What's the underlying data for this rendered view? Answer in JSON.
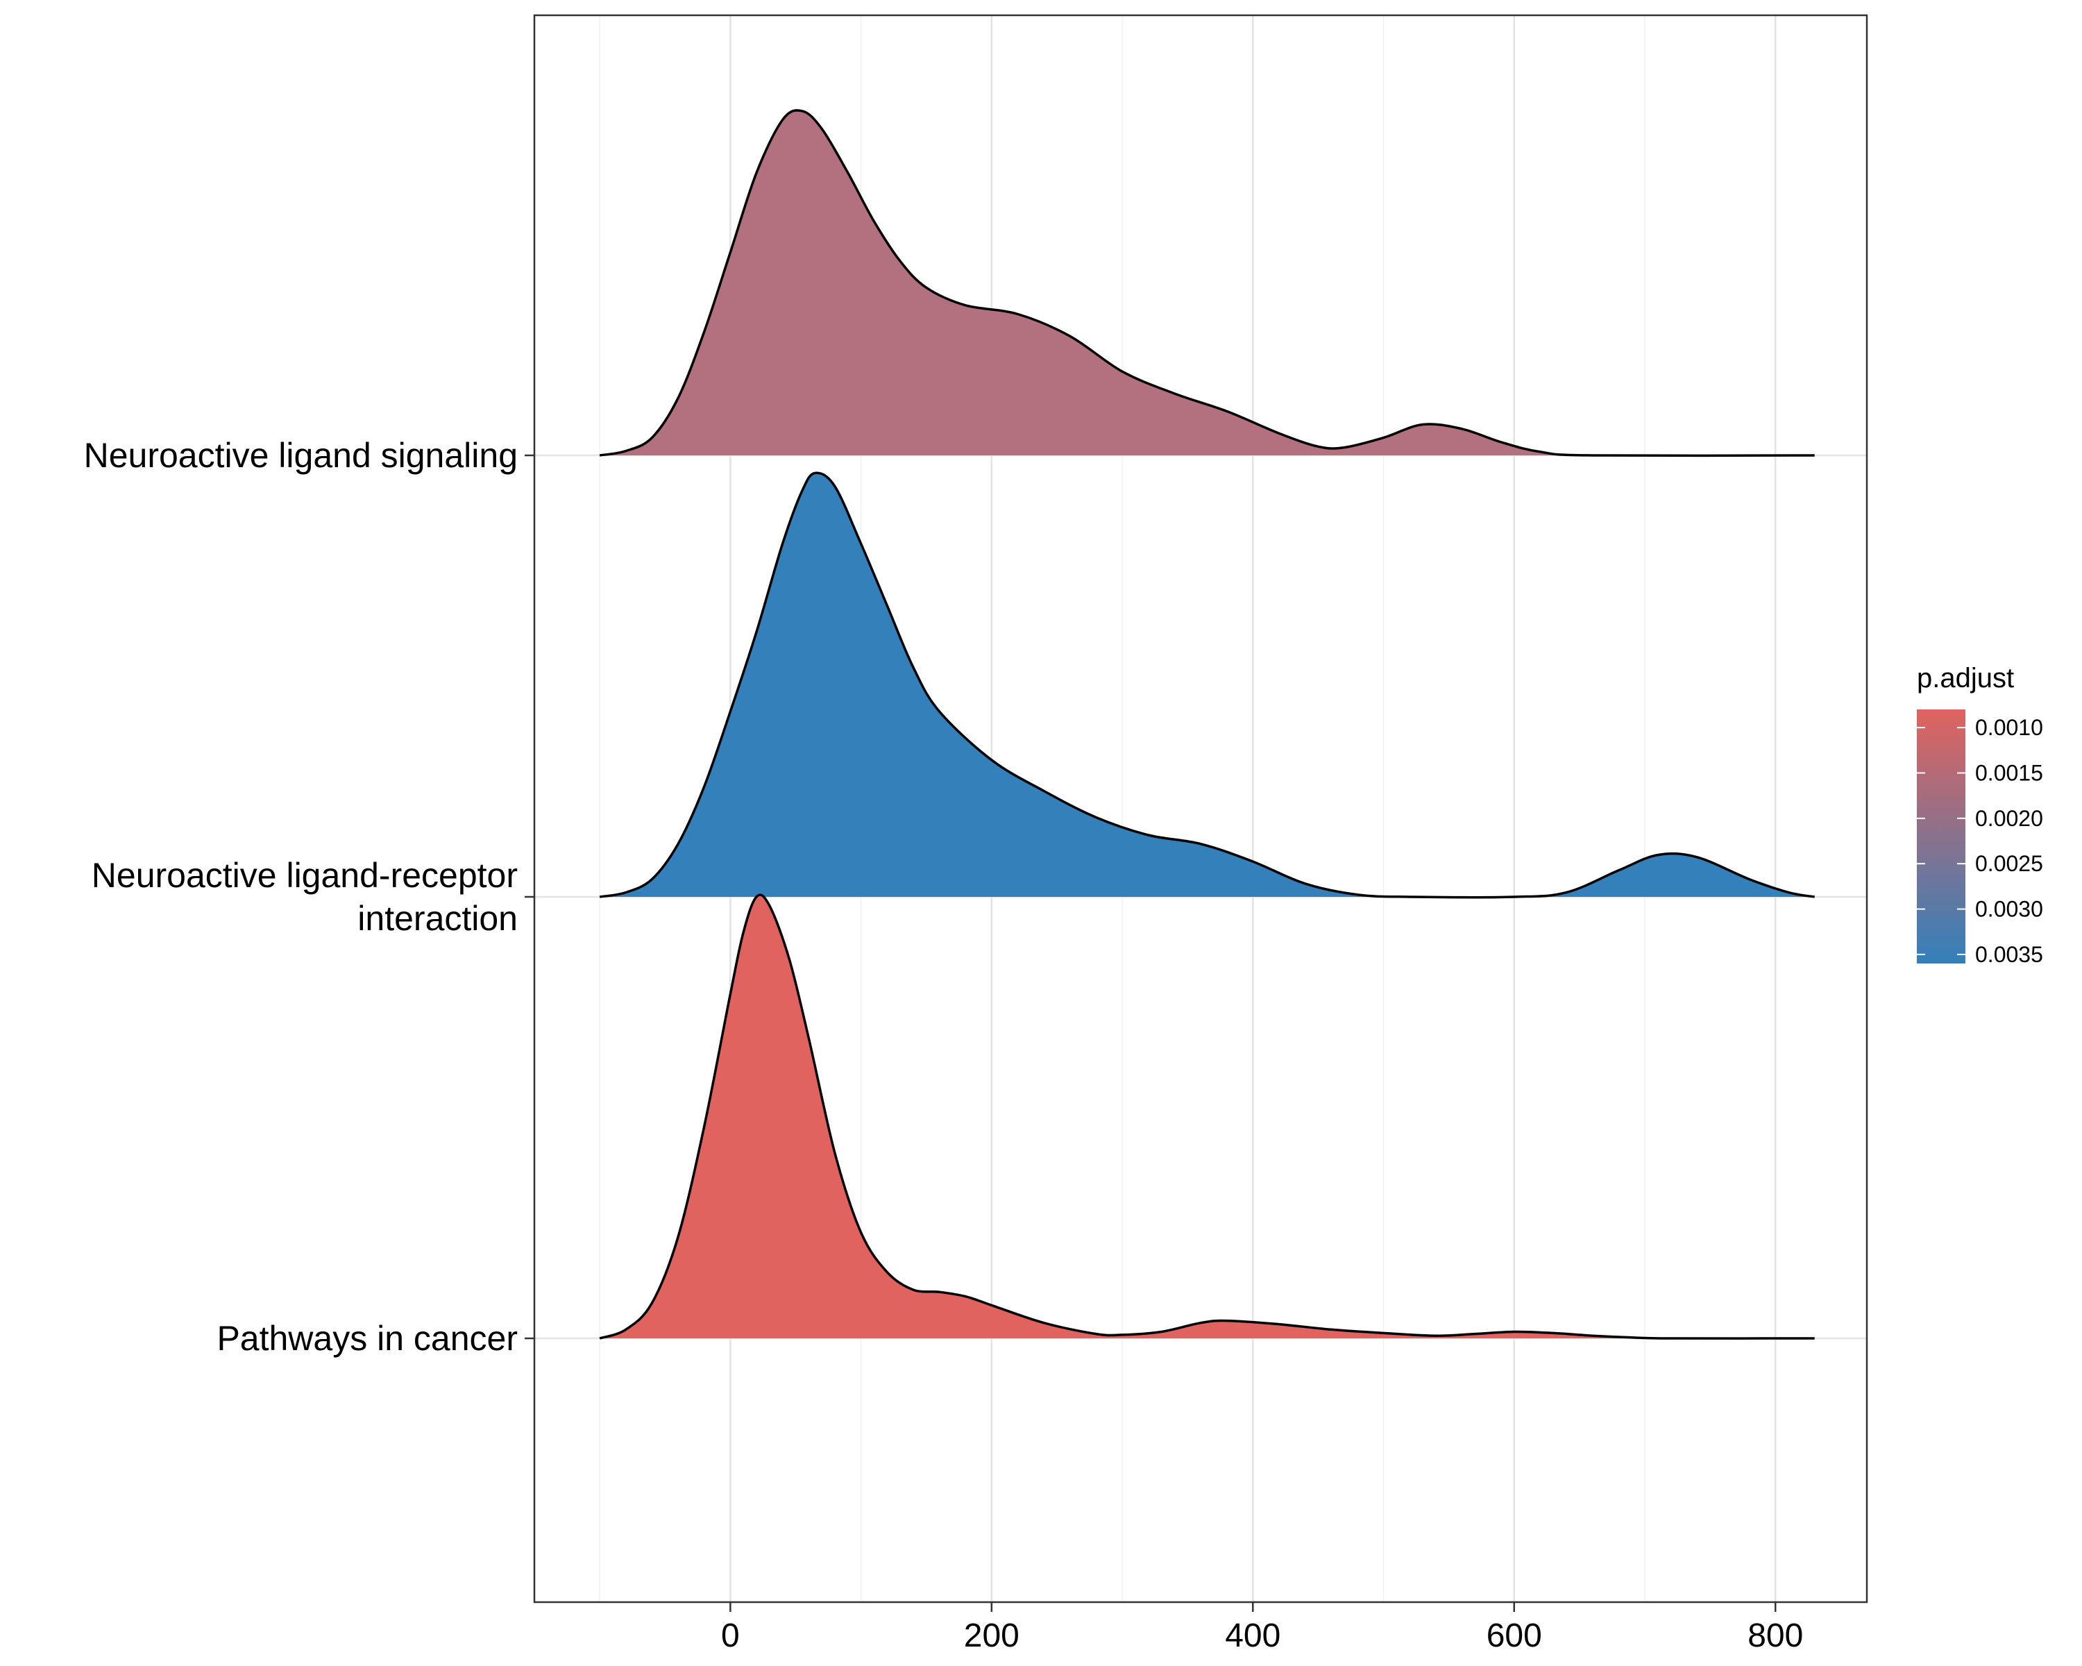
{
  "chart_data": {
    "type": "ridgeline",
    "xlim": [
      -150,
      870
    ],
    "x_ticks": [
      0,
      200,
      400,
      600,
      800
    ],
    "x_tick_labels": [
      "0",
      "200",
      "400",
      "600",
      "800"
    ],
    "grid": true,
    "legend": {
      "title": "p.adjust",
      "placement": "right",
      "gradient_from": "#e0635f",
      "gradient_to": "#3480ba",
      "range": [
        0.0008,
        0.0036
      ],
      "ticks": [
        0.001,
        0.0015,
        0.002,
        0.0025,
        0.003,
        0.0035
      ],
      "tick_labels": [
        "0.0010",
        "0.0015",
        "0.0020",
        "0.0025",
        "0.0030",
        "0.0035"
      ]
    },
    "series": [
      {
        "name": "Pathways in cancer",
        "p_adjust": 0.0008,
        "color": "#e0635f",
        "density": [
          [
            -100,
            0.0
          ],
          [
            -80,
            0.02
          ],
          [
            -60,
            0.08
          ],
          [
            -40,
            0.23
          ],
          [
            -20,
            0.48
          ],
          [
            0,
            0.78
          ],
          [
            10,
            0.92
          ],
          [
            20,
            1.0
          ],
          [
            30,
            0.98
          ],
          [
            45,
            0.86
          ],
          [
            60,
            0.68
          ],
          [
            80,
            0.42
          ],
          [
            100,
            0.24
          ],
          [
            120,
            0.15
          ],
          [
            140,
            0.11
          ],
          [
            160,
            0.105
          ],
          [
            180,
            0.095
          ],
          [
            200,
            0.075
          ],
          [
            240,
            0.035
          ],
          [
            280,
            0.01
          ],
          [
            300,
            0.008
          ],
          [
            330,
            0.015
          ],
          [
            360,
            0.035
          ],
          [
            380,
            0.04
          ],
          [
            420,
            0.032
          ],
          [
            460,
            0.02
          ],
          [
            500,
            0.012
          ],
          [
            540,
            0.006
          ],
          [
            570,
            0.01
          ],
          [
            600,
            0.015
          ],
          [
            630,
            0.012
          ],
          [
            660,
            0.006
          ],
          [
            690,
            0.002
          ],
          [
            720,
            0.0
          ],
          [
            830,
            0.0
          ]
        ]
      },
      {
        "name": "Neuroactive ligand-receptor\ninteraction",
        "p_adjust": 0.0036,
        "color": "#3480ba",
        "density": [
          [
            -100,
            0.0
          ],
          [
            -80,
            0.01
          ],
          [
            -60,
            0.04
          ],
          [
            -40,
            0.12
          ],
          [
            -20,
            0.25
          ],
          [
            0,
            0.42
          ],
          [
            20,
            0.6
          ],
          [
            40,
            0.8
          ],
          [
            55,
            0.92
          ],
          [
            65,
            0.96
          ],
          [
            80,
            0.93
          ],
          [
            100,
            0.8
          ],
          [
            120,
            0.66
          ],
          [
            140,
            0.52
          ],
          [
            160,
            0.42
          ],
          [
            200,
            0.31
          ],
          [
            240,
            0.24
          ],
          [
            280,
            0.18
          ],
          [
            320,
            0.14
          ],
          [
            360,
            0.12
          ],
          [
            400,
            0.08
          ],
          [
            440,
            0.03
          ],
          [
            480,
            0.005
          ],
          [
            520,
            0.0
          ],
          [
            600,
            0.0
          ],
          [
            640,
            0.01
          ],
          [
            680,
            0.06
          ],
          [
            710,
            0.095
          ],
          [
            740,
            0.09
          ],
          [
            780,
            0.04
          ],
          [
            810,
            0.01
          ],
          [
            830,
            0.0
          ]
        ]
      },
      {
        "name": "Neuroactive ligand signaling",
        "p_adjust": 0.0021,
        "color": "#b3717f",
        "density": [
          [
            -100,
            0.0
          ],
          [
            -80,
            0.01
          ],
          [
            -60,
            0.04
          ],
          [
            -40,
            0.13
          ],
          [
            -20,
            0.28
          ],
          [
            0,
            0.46
          ],
          [
            20,
            0.64
          ],
          [
            40,
            0.76
          ],
          [
            55,
            0.78
          ],
          [
            70,
            0.74
          ],
          [
            90,
            0.64
          ],
          [
            110,
            0.53
          ],
          [
            130,
            0.44
          ],
          [
            150,
            0.38
          ],
          [
            180,
            0.34
          ],
          [
            220,
            0.32
          ],
          [
            260,
            0.27
          ],
          [
            300,
            0.19
          ],
          [
            340,
            0.14
          ],
          [
            380,
            0.1
          ],
          [
            420,
            0.05
          ],
          [
            450,
            0.02
          ],
          [
            470,
            0.018
          ],
          [
            500,
            0.04
          ],
          [
            530,
            0.07
          ],
          [
            560,
            0.06
          ],
          [
            590,
            0.03
          ],
          [
            620,
            0.008
          ],
          [
            660,
            0.0
          ],
          [
            830,
            0.0
          ]
        ]
      }
    ]
  }
}
